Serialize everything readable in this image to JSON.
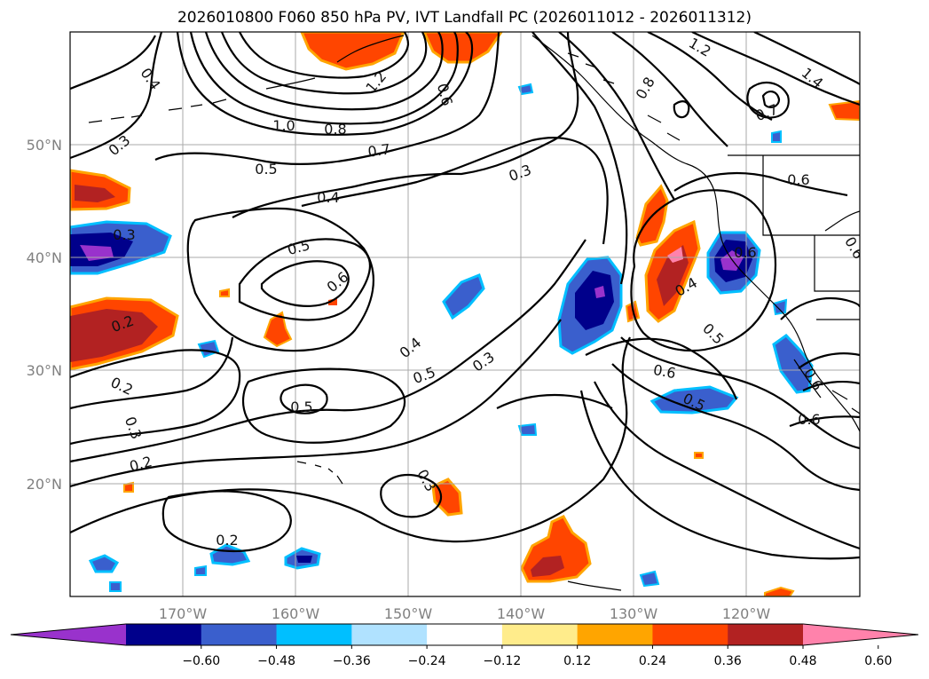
{
  "title": "2026010800 F060 850 hPa PV, IVT Landfall PC (2026011012 - 2026011312)",
  "lat_labels": [
    "50°N",
    "40°N",
    "30°N",
    "20°N"
  ],
  "lon_labels": [
    "170°W",
    "160°W",
    "150°W",
    "140°W",
    "130°W",
    "120°W"
  ],
  "contour_labels": [
    "0.4",
    "0.3",
    "0.3",
    "0.2",
    "0.2",
    "0.3",
    "0.2",
    "0.2",
    "0.5",
    "0.4",
    "0.5",
    "0.6",
    "1.0",
    "0.8",
    "0.7",
    "1.2",
    "0.6",
    "0.3",
    "0.4",
    "0.5",
    "0.3",
    "0.5",
    "0.3",
    "0.6",
    "0.5",
    "0.4",
    "0.5",
    "0.6",
    "0.6",
    "0.8",
    "1.2",
    "1.4",
    "0.7",
    "0.6",
    "0.6",
    "0.6"
  ],
  "colorbar": {
    "ticks": [
      "−0.60",
      "−0.48",
      "−0.36",
      "−0.24",
      "−0.12",
      "0.12",
      "0.24",
      "0.36",
      "0.48",
      "0.60"
    ],
    "colors": [
      "#9932cc",
      "#00008b",
      "#3a5fcd",
      "#00bfff",
      "#b0e2ff",
      "#ffffff",
      "#ffec8b",
      "#ffa500",
      "#ff4500",
      "#b22222",
      "#ff82ab"
    ]
  }
}
